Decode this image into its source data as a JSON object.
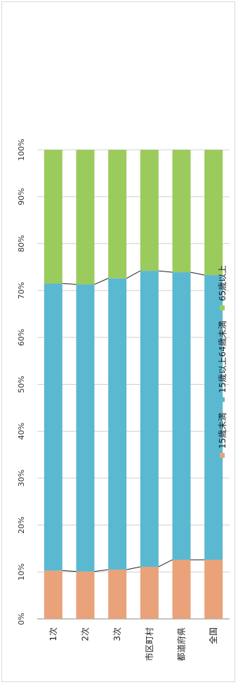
{
  "chart_data": {
    "type": "bar",
    "stacked": "percent",
    "orientation": "horizontal",
    "categories": [
      "1次",
      "2次",
      "3次",
      "市区町村",
      "都道府県",
      "全国"
    ],
    "series": [
      {
        "name": "15歳未満",
        "color": "#e9a27a",
        "values": [
          10.3,
          10.1,
          10.5,
          11.1,
          12.6,
          12.6
        ]
      },
      {
        "name": "15歳以上64歳未満",
        "color": "#5bb8d1",
        "values": [
          61.2,
          61.2,
          62.1,
          63.1,
          61.3,
          60.7
        ]
      },
      {
        "name": "65歳以上",
        "color": "#9acb5c",
        "values": [
          28.5,
          28.7,
          27.4,
          25.8,
          26.1,
          26.7
        ]
      }
    ],
    "value_axis": {
      "range": [
        0,
        100
      ],
      "tick_labels": [
        "0%",
        "10%",
        "20%",
        "30%",
        "40%",
        "50%",
        "60%",
        "70%",
        "80%",
        "90%",
        "100%"
      ]
    },
    "grid": true,
    "series_lines": true,
    "legend_position": "right"
  }
}
